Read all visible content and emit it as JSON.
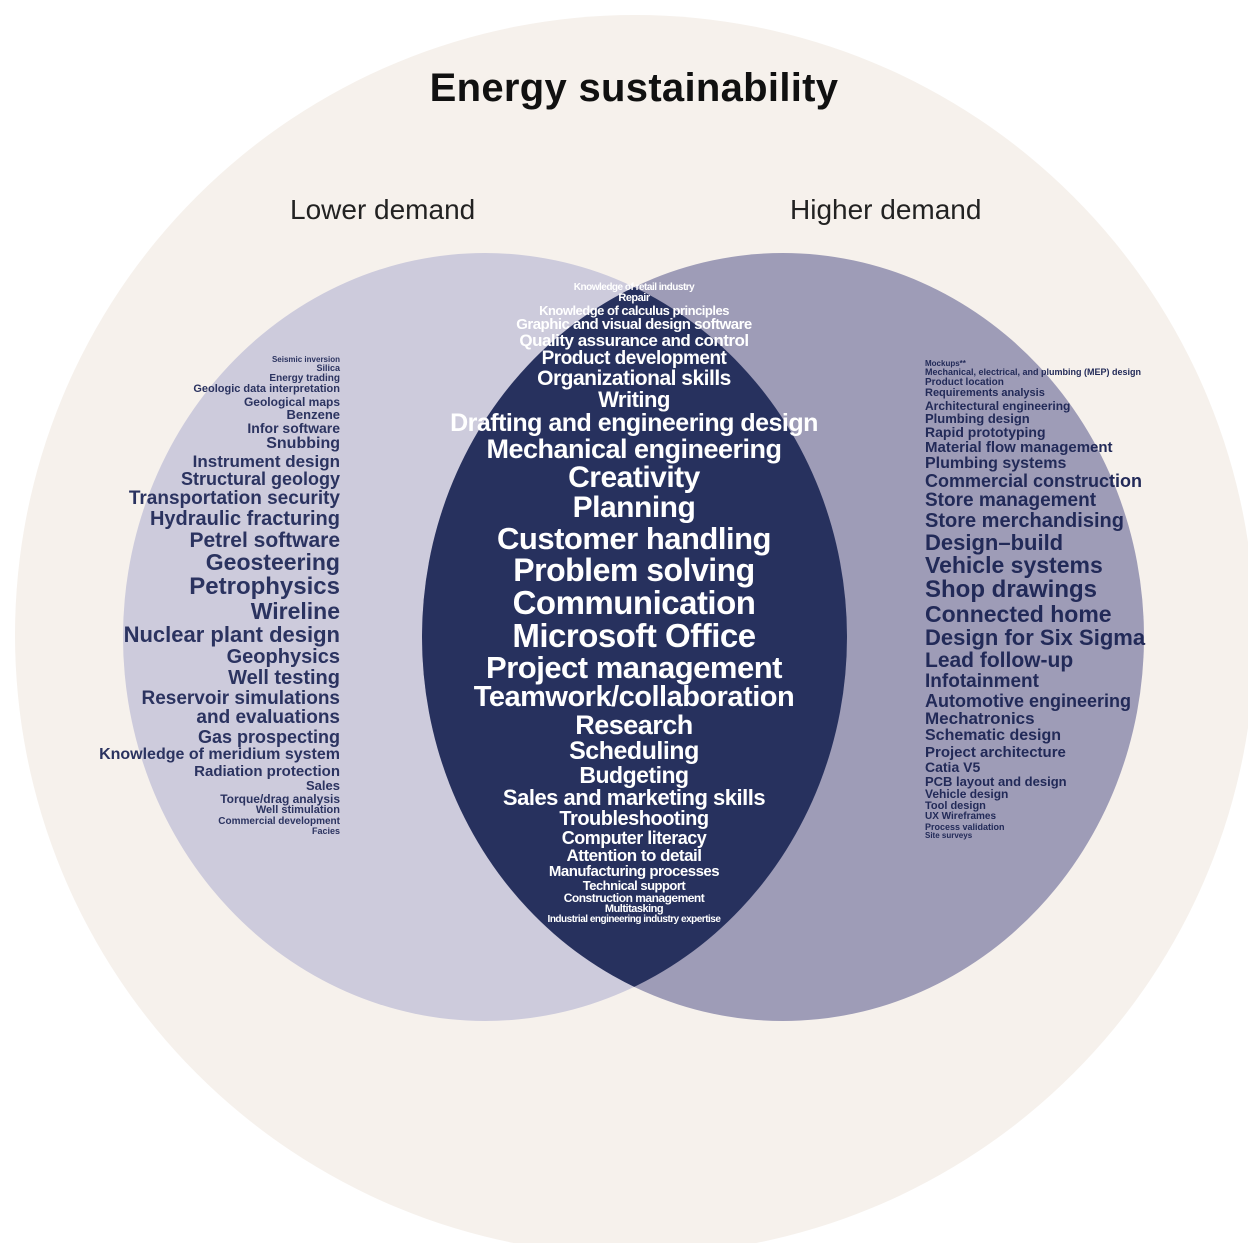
{
  "title": "Energy sustainability",
  "labels": {
    "lower": "Lower demand",
    "higher": "Higher demand"
  },
  "colors": {
    "outer_circle": "#f6f1ec",
    "lower_circle": "#cdcbdc",
    "higher_circle": "#9e9cb7",
    "overlap": "#27315e",
    "lower_text": "#2b3360",
    "higher_text": "#222a58",
    "overlap_text": "#ffffff"
  },
  "lower_only": [
    "Seismic inversion",
    "Silica",
    "Energy trading",
    "Geologic data interpretation",
    "Geological maps",
    "Benzene",
    "Infor software",
    "Snubbing",
    "Instrument design",
    "Structural geology",
    "Transportation security",
    "Hydraulic fracturing",
    "Petrel software",
    "Geosteering",
    "Petrophysics",
    "Wireline",
    "Nuclear plant design",
    "Geophysics",
    "Well testing",
    "Reservoir simulations",
    "and evaluations",
    "Gas prospecting",
    "Knowledge of meridium system",
    "Radiation protection",
    "Sales",
    "Torque/drag analysis",
    "Well stimulation",
    "Commercial development",
    "Facies"
  ],
  "both": [
    "Knowledge of retail industry",
    "Repair",
    "Knowledge of calculus principles",
    "Graphic and visual design software",
    "Quality assurance and control",
    "Product development",
    "Organizational skills",
    "Writing",
    "Drafting and engineering design",
    "Mechanical engineering",
    "Creativity",
    "Planning",
    "Customer handling",
    "Problem solving",
    "Communication",
    "Microsoft Office",
    "Project management",
    "Teamwork/collaboration",
    "Research",
    "Scheduling",
    "Budgeting",
    "Sales and marketing skills",
    "Troubleshooting",
    "Computer literacy",
    "Attention to detail",
    "Manufacturing processes",
    "Technical support",
    "Construction management",
    "Multitasking",
    "Industrial engineering industry expertise"
  ],
  "higher_only": [
    "Mockups**",
    "Mechanical, electrical, and plumbing (MEP) design",
    "Product location",
    "Requirements analysis",
    "Architectural engineering",
    "Plumbing design",
    "Rapid prototyping",
    "Material flow management",
    "Plumbing systems",
    "Commercial construction",
    "Store management",
    "Store merchandising",
    "Design–build",
    "Vehicle systems",
    "Shop drawings",
    "Connected home",
    "Design for Six Sigma",
    "Lead follow-up",
    "Infotainment",
    "Automotive engineering",
    "Mechatronics",
    "Schematic design",
    "Project architecture",
    "Catia V5",
    "PCB layout and design",
    "Vehicle design",
    "Tool design",
    "UX Wireframes",
    "Process validation",
    "Site surveys"
  ]
}
